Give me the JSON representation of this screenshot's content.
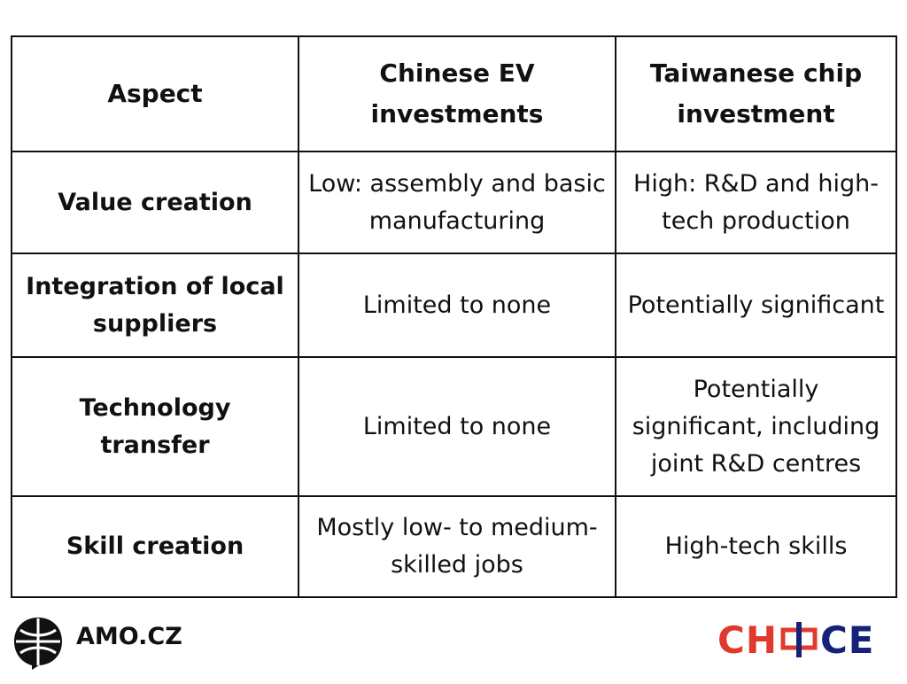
{
  "table": {
    "headers": [
      "Aspect",
      "Chinese EV investments",
      "Taiwanese chip investment"
    ],
    "rows": [
      [
        "Value creation",
        "Low: assembly and basic manufacturing",
        "High: R&D and high-tech production"
      ],
      [
        "Integration of local suppliers",
        "Limited to none",
        "Potentially significant"
      ],
      [
        "Technology transfer",
        "Limited to none",
        "Potentially significant, including joint R&D centres"
      ],
      [
        "Skill creation",
        "Mostly low- to medium-skilled jobs",
        "High-tech skills"
      ]
    ]
  },
  "footer": {
    "left_brand": "AMO.CZ",
    "right_brand_prefix": "CH",
    "right_brand_suffix": "CE",
    "right_brand_word": "CHOICE"
  },
  "colors": {
    "choice_red": "#e03a2f",
    "choice_blue": "#16227a"
  }
}
